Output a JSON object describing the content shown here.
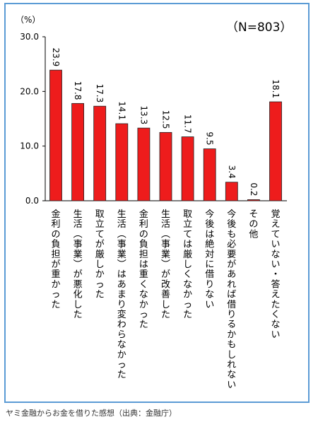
{
  "chart_data": {
    "type": "bar",
    "unit_label": "（%）",
    "sample_label": "（N=803）",
    "ylim": [
      0,
      30
    ],
    "yticks": [
      "0.0",
      "10.0",
      "20.0",
      "30.0"
    ],
    "yticks_values": [
      0,
      10,
      20,
      30
    ],
    "grid": false,
    "bar_color": "#ee1c1c",
    "bar_edge_color": "#222222",
    "categories": [
      "金利の負担が重かった",
      "生活︵事業︶が悪化した",
      "取立てが厳しかった",
      "生活︵事業︶はあまり変わらなかった",
      "金利の負担は重くなかった",
      "生活︵事業︶が改善した",
      "取立ては厳しくなかった",
      "今後は絶対に借りない",
      "今後も必要があれば借りるかもしれない",
      "その他",
      "覚えていない・答えたくない"
    ],
    "values": [
      23.9,
      17.8,
      17.3,
      14.1,
      13.3,
      12.5,
      11.7,
      9.5,
      3.4,
      0.2,
      18.1
    ],
    "value_labels": [
      "23.9",
      "17.8",
      "17.3",
      "14.1",
      "13.3",
      "12.5",
      "11.7",
      "9.5",
      "3.4",
      "0.2",
      "18.1"
    ]
  },
  "caption": "ヤミ金融からお金を借りた感想（出典：金融庁）",
  "colors": {
    "frame": "#5b9bd5",
    "axis": "#000000",
    "text": "#000000"
  }
}
